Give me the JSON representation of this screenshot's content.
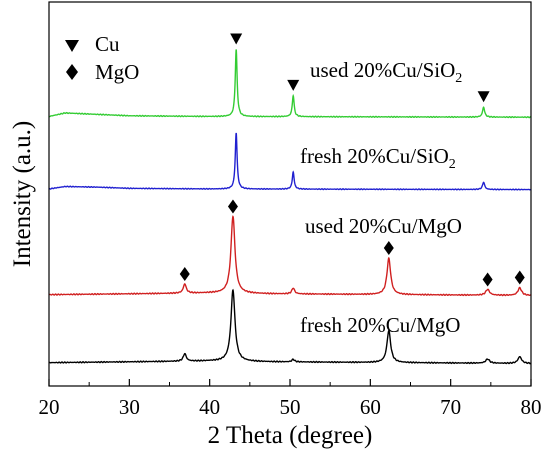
{
  "chart_data": {
    "type": "line",
    "xlabel": "2 Theta (degree)",
    "ylabel": "Intensity (a.u.)",
    "xlim": [
      20,
      80
    ],
    "xticks": [
      20,
      30,
      40,
      50,
      60,
      70,
      80
    ],
    "y_tick_labels": "none",
    "grid": false,
    "legend": {
      "placement": "top-left",
      "entries": [
        {
          "marker": "down-triangle",
          "label": "Cu"
        },
        {
          "marker": "diamond",
          "label": "MgO"
        }
      ]
    },
    "baseline_noise": {
      "amplitude": 0.006,
      "period_deg": 0.35
    },
    "series": [
      {
        "name": "fresh 20%Cu/MgO",
        "color": "#000000",
        "intensity_range": [
          0,
          1.05
        ],
        "baseline": [
          [
            20,
            0.04
          ],
          [
            30,
            0.05
          ],
          [
            40,
            0.06
          ],
          [
            48,
            0.05
          ],
          [
            80,
            0.03
          ]
        ],
        "peaks": [
          {
            "x": 36.9,
            "h": 0.09,
            "w": 0.22
          },
          {
            "x": 42.9,
            "h": 0.85,
            "w": 0.3
          },
          {
            "x": 50.4,
            "h": 0.03,
            "w": 0.2
          },
          {
            "x": 62.3,
            "h": 0.38,
            "w": 0.28
          },
          {
            "x": 74.6,
            "h": 0.05,
            "w": 0.28
          },
          {
            "x": 78.6,
            "h": 0.08,
            "w": 0.28
          }
        ],
        "markers": []
      },
      {
        "name": "used 20%Cu/MgO",
        "color": "#d02020",
        "intensity_range": [
          0,
          1.05
        ],
        "baseline": [
          [
            20,
            0.04
          ],
          [
            30,
            0.05
          ],
          [
            40,
            0.06
          ],
          [
            48,
            0.05
          ],
          [
            80,
            0.03
          ]
        ],
        "peaks": [
          {
            "x": 36.9,
            "h": 0.11,
            "w": 0.22
          },
          {
            "x": 42.9,
            "h": 0.92,
            "w": 0.3
          },
          {
            "x": 50.4,
            "h": 0.07,
            "w": 0.2
          },
          {
            "x": 62.3,
            "h": 0.43,
            "w": 0.28
          },
          {
            "x": 74.6,
            "h": 0.07,
            "w": 0.28
          },
          {
            "x": 78.6,
            "h": 0.09,
            "w": 0.28
          }
        ],
        "markers": [
          {
            "x": 36.9,
            "symbol": "diamond"
          },
          {
            "x": 42.9,
            "symbol": "diamond"
          },
          {
            "x": 62.3,
            "symbol": "diamond"
          },
          {
            "x": 74.6,
            "symbol": "diamond"
          },
          {
            "x": 78.6,
            "symbol": "diamond"
          }
        ]
      },
      {
        "name": "fresh 20%Cu/SiO2",
        "color": "#2020d0",
        "intensity_range": [
          0,
          1.05
        ],
        "baseline": [
          [
            20,
            0.05
          ],
          [
            22,
            0.09
          ],
          [
            26,
            0.08
          ],
          [
            30,
            0.06
          ],
          [
            40,
            0.05
          ],
          [
            80,
            0.04
          ]
        ],
        "peaks": [
          {
            "x": 43.3,
            "h": 0.92,
            "w": 0.14
          },
          {
            "x": 50.4,
            "h": 0.28,
            "w": 0.14
          },
          {
            "x": 74.1,
            "h": 0.12,
            "w": 0.16
          }
        ],
        "markers": []
      },
      {
        "name": "used 20%Cu/SiO2",
        "color": "#33cc33",
        "intensity_range": [
          0,
          1.05
        ],
        "baseline": [
          [
            20,
            0.05
          ],
          [
            22,
            0.1
          ],
          [
            26,
            0.08
          ],
          [
            30,
            0.06
          ],
          [
            40,
            0.05
          ],
          [
            80,
            0.04
          ]
        ],
        "peaks": [
          {
            "x": 43.3,
            "h": 0.95,
            "w": 0.14
          },
          {
            "x": 50.4,
            "h": 0.3,
            "w": 0.14
          },
          {
            "x": 74.1,
            "h": 0.14,
            "w": 0.16
          }
        ],
        "markers": [
          {
            "x": 43.3,
            "symbol": "down-triangle"
          },
          {
            "x": 50.4,
            "symbol": "down-triangle"
          },
          {
            "x": 74.1,
            "symbol": "down-triangle"
          }
        ]
      }
    ]
  }
}
